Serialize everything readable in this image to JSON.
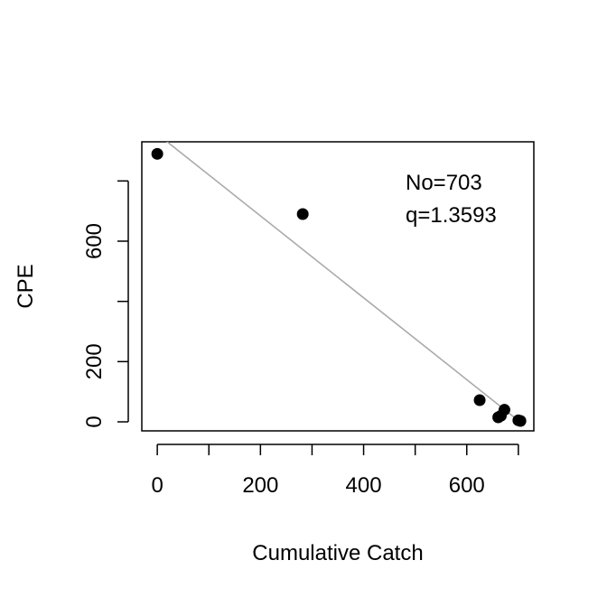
{
  "chart_data": {
    "type": "scatter",
    "title": "",
    "xlabel": "Cumulative Catch",
    "ylabel": "CPE",
    "xlim": [
      -30,
      730
    ],
    "ylim": [
      -30,
      930
    ],
    "x_ticks": [
      0,
      100,
      200,
      300,
      400,
      500,
      600,
      700
    ],
    "x_tick_labels": [
      {
        "value": 0,
        "label": "0"
      },
      {
        "value": 200,
        "label": "200"
      },
      {
        "value": 400,
        "label": "400"
      },
      {
        "value": 600,
        "label": "600"
      }
    ],
    "y_ticks": [
      0,
      200,
      400,
      600,
      800
    ],
    "y_tick_labels": [
      {
        "value": 0,
        "label": "0"
      },
      {
        "value": 200,
        "label": "200"
      },
      {
        "value": 600,
        "label": "600"
      }
    ],
    "points": [
      {
        "x": 0,
        "y": 890
      },
      {
        "x": 282,
        "y": 690
      },
      {
        "x": 625,
        "y": 72
      },
      {
        "x": 673,
        "y": 40
      },
      {
        "x": 661,
        "y": 15
      },
      {
        "x": 666,
        "y": 20
      },
      {
        "x": 700,
        "y": 5
      },
      {
        "x": 704,
        "y": 3
      }
    ],
    "fit_line": {
      "x0": 0,
      "y0": 956,
      "x1": 703,
      "y1": 0,
      "color": "#aaaaaa"
    },
    "annotations": [
      "No=703",
      "q=1.3593"
    ],
    "grid": false,
    "point_color": "#000000"
  }
}
